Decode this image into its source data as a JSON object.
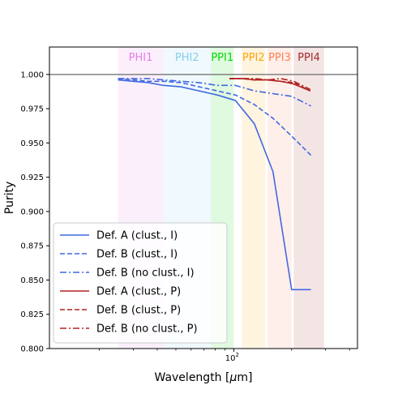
{
  "chart_data": {
    "type": "line",
    "xlabel": "Wavelength [$\\mu$m]",
    "xlabel_text": "Wavelength [",
    "xlabel_mu": "μ",
    "xlabel_unit": "m]",
    "ylabel": "Purity",
    "x_scale": "log",
    "xlim": [
      11,
      440
    ],
    "ylim": [
      0.8,
      1.02
    ],
    "x_tick_labels": [
      {
        "value": 100,
        "base": "10",
        "exp": "2"
      }
    ],
    "y_ticks": [
      0.8,
      0.825,
      0.85,
      0.875,
      0.9,
      0.925,
      0.95,
      0.975,
      1.0
    ],
    "y_tick_labels": [
      "0.800",
      "0.825",
      "0.850",
      "0.875",
      "0.900",
      "0.925",
      "0.950",
      "0.975",
      "1.000"
    ],
    "reference_line": {
      "y": 1.0,
      "color": "#808080"
    },
    "bands": [
      {
        "label": "PHI1",
        "range": [
          25,
          43
        ],
        "color": "#e57ee6"
      },
      {
        "label": "PHI2",
        "range": [
          43,
          76
        ],
        "color": "#87ceeb"
      },
      {
        "label": "PPI1",
        "range": [
          76,
          100
        ],
        "color": "#00d900"
      },
      {
        "label": "PPI2",
        "range": [
          110,
          146
        ],
        "color": "#ffa500"
      },
      {
        "label": "PPI3",
        "range": [
          150,
          200
        ],
        "color": "#ff7f50"
      },
      {
        "label": "PPI4",
        "range": [
          205,
          295
        ],
        "color": "#a52a2a"
      }
    ],
    "series": [
      {
        "name": "Def. A (clust., I)",
        "color": "#4169e1",
        "dash": "solid",
        "x": [
          25,
          30,
          36,
          43,
          53,
          66,
          82,
          102,
          128,
          160,
          200,
          252
        ],
        "y": [
          0.996,
          0.995,
          0.994,
          0.992,
          0.991,
          0.988,
          0.985,
          0.981,
          0.964,
          0.929,
          0.843,
          0.843
        ]
      },
      {
        "name": "Def. B (clust., I)",
        "color": "#4169e1",
        "dash": "dashed",
        "x": [
          25,
          30,
          36,
          43,
          53,
          66,
          82,
          102,
          128,
          160,
          200,
          252
        ],
        "y": [
          0.997,
          0.996,
          0.995,
          0.995,
          0.994,
          0.991,
          0.988,
          0.985,
          0.978,
          0.968,
          0.955,
          0.941
        ]
      },
      {
        "name": "Def. B (no clust., I)",
        "color": "#4169e1",
        "dash": "dashdot",
        "x": [
          25,
          30,
          36,
          43,
          53,
          66,
          82,
          102,
          128,
          160,
          200,
          252
        ],
        "y": [
          0.997,
          0.997,
          0.997,
          0.996,
          0.995,
          0.994,
          0.992,
          0.992,
          0.988,
          0.986,
          0.984,
          0.977
        ]
      },
      {
        "name": "Def. A (clust., P)",
        "color": "#b22222",
        "dash": "solid",
        "x": [
          95,
          110,
          128,
          150,
          175,
          205,
          250
        ],
        "y": [
          0.997,
          0.997,
          0.996,
          0.996,
          0.995,
          0.993,
          0.988
        ]
      },
      {
        "name": "Def. B (clust., P)",
        "color": "#b22222",
        "dash": "dashed",
        "x": [
          95,
          110,
          128,
          150,
          175,
          205,
          250
        ],
        "y": [
          0.997,
          0.997,
          0.996,
          0.996,
          0.995,
          0.994,
          0.988
        ]
      },
      {
        "name": "Def. B (no clust., P)",
        "color": "#b22222",
        "dash": "dashdot",
        "x": [
          95,
          110,
          128,
          150,
          175,
          205,
          250
        ],
        "y": [
          0.997,
          0.997,
          0.997,
          0.996,
          0.997,
          0.995,
          0.989
        ]
      }
    ],
    "legend": {
      "placement": "lower-left"
    }
  }
}
